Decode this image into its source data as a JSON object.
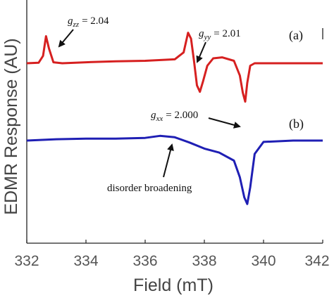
{
  "chart_data": {
    "type": "line",
    "title": "",
    "xlabel": "Field (mT)",
    "ylabel": "EDMR Response (AU)",
    "xlim": [
      332,
      342
    ],
    "x_ticks": [
      332,
      334,
      336,
      338,
      340,
      342
    ],
    "y_ticks": [],
    "grid": false,
    "legend": "none",
    "series": [
      {
        "color": "#d62020",
        "x": [
          332,
          332.4,
          332.55,
          332.65,
          332.75,
          332.9,
          333.2,
          334,
          335,
          336,
          337,
          337.3,
          337.45,
          337.55,
          337.65,
          337.75,
          337.85,
          337.95,
          338.1,
          338.3,
          338.6,
          339.0,
          339.2,
          339.3,
          339.38,
          339.45,
          339.55,
          339.7,
          340,
          341,
          342
        ],
        "y": [
          0.0,
          0.01,
          0.15,
          0.55,
          0.3,
          0.02,
          0.0,
          0.02,
          0.04,
          0.05,
          0.08,
          0.22,
          0.62,
          0.5,
          0.05,
          -0.45,
          -0.58,
          -0.38,
          -0.05,
          0.1,
          0.12,
          0.05,
          -0.25,
          -0.6,
          -0.78,
          -0.4,
          -0.05,
          0.0,
          0.0,
          0.0,
          0.0
        ]
      },
      {
        "color": "#1f1fb4",
        "x": [
          332,
          333,
          334,
          335,
          336,
          336.5,
          337,
          337.5,
          338,
          338.5,
          339,
          339.2,
          339.35,
          339.45,
          339.55,
          339.7,
          340,
          341,
          342
        ],
        "y": [
          0.0,
          0.02,
          0.03,
          0.03,
          0.04,
          0.07,
          0.05,
          -0.03,
          -0.12,
          -0.18,
          -0.3,
          -0.55,
          -0.85,
          -0.95,
          -0.7,
          -0.2,
          -0.02,
          0.0,
          0.0
        ]
      }
    ],
    "annotations": [
      {
        "id": "gzz",
        "text": "g_zz = 2.04",
        "symbol": "g",
        "subscript": "zz",
        "value": "= 2.04"
      },
      {
        "id": "gyy",
        "text": "g_yy = 2.01",
        "symbol": "g",
        "subscript": "yy",
        "value": "= 2.01"
      },
      {
        "id": "gxx",
        "text": "g_xx = 2.000",
        "symbol": "g",
        "subscript": "xx",
        "value": "= 2.000"
      },
      {
        "id": "disorder",
        "text": "disorder broadening"
      }
    ],
    "panel_labels": [
      "(a)",
      "(b)"
    ]
  }
}
